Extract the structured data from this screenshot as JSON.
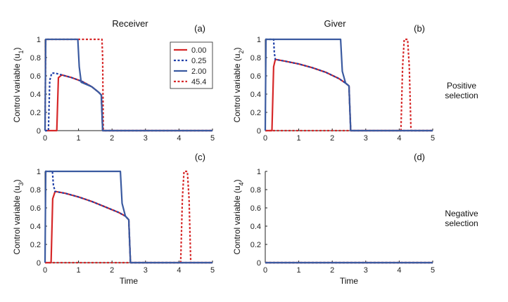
{
  "figure": {
    "column_titles": [
      "Receiver",
      "Giver"
    ],
    "row_labels": [
      [
        "Positive",
        "selection"
      ],
      [
        "Negative",
        "selection"
      ]
    ],
    "x_label": "Time",
    "legend": [
      {
        "label": "0.00",
        "color": "#d62728",
        "style": "solid"
      },
      {
        "label": "0.25",
        "color": "#1f3fa8",
        "style": "dotted"
      },
      {
        "label": "2.00",
        "color": "#3a5aa0",
        "style": "solid"
      },
      {
        "label": "45.4",
        "color": "#d62728",
        "style": "dotted"
      }
    ]
  },
  "chart_data": [
    {
      "panel": "(a)",
      "type": "line",
      "ylabel": "Control variable (u1)",
      "ylabel_main": "Control variable (u",
      "ylabel_sub": "1",
      "ylabel_end": ")",
      "xlim": [
        0,
        5
      ],
      "ylim": [
        0,
        1
      ],
      "xticks": [
        "0",
        "1",
        "2",
        "3",
        "4",
        "5"
      ],
      "yticks": [
        "0",
        "0.2",
        "0.4",
        "0.6",
        "0.8",
        "1"
      ],
      "series": [
        {
          "name": "0.00",
          "color": "#d62728",
          "dash": false,
          "x": [
            0,
            0.35,
            0.4,
            0.5,
            0.8,
            1.1,
            1.4,
            1.6,
            1.68,
            1.72,
            5
          ],
          "y": [
            0,
            0,
            0.58,
            0.61,
            0.58,
            0.54,
            0.48,
            0.42,
            0.39,
            0,
            0
          ]
        },
        {
          "name": "0.25",
          "color": "#1f3fa8",
          "dash": true,
          "x": [
            0,
            0.1,
            0.14,
            0.2,
            0.3,
            0.5,
            0.8,
            1.1,
            1.4,
            1.6,
            1.68,
            1.72,
            5
          ],
          "y": [
            0,
            0,
            0.55,
            0.63,
            0.63,
            0.61,
            0.58,
            0.54,
            0.48,
            0.42,
            0.39,
            0,
            0
          ]
        },
        {
          "name": "2.00",
          "color": "#3a5aa0",
          "dash": false,
          "x": [
            0,
            0.02,
            0.98,
            1.02,
            1.08,
            1.4,
            1.6,
            1.68,
            1.72,
            5
          ],
          "y": [
            0,
            1,
            1,
            0.7,
            0.53,
            0.48,
            0.42,
            0.39,
            0,
            0
          ]
        },
        {
          "name": "45.4",
          "color": "#d62728",
          "dash": true,
          "x": [
            0,
            0.02,
            1.7,
            1.72,
            1.74,
            5
          ],
          "y": [
            0,
            1,
            1,
            0.8,
            0,
            0
          ]
        }
      ]
    },
    {
      "panel": "(b)",
      "type": "line",
      "ylabel": "Control variable (u2)",
      "ylabel_main": "Control variable (u",
      "ylabel_sub": "2",
      "ylabel_end": ")",
      "xlim": [
        0,
        5
      ],
      "ylim": [
        0,
        1
      ],
      "xticks": [
        "0",
        "1",
        "2",
        "3",
        "4",
        "5"
      ],
      "yticks": [
        "0",
        "0.2",
        "0.4",
        "0.6",
        "0.8",
        "1"
      ],
      "series": [
        {
          "name": "0.00",
          "color": "#d62728",
          "dash": false,
          "x": [
            0,
            0.2,
            0.25,
            0.3,
            0.6,
            1.0,
            1.4,
            1.8,
            2.2,
            2.4,
            2.5,
            2.55,
            5
          ],
          "y": [
            0,
            0,
            0.7,
            0.78,
            0.76,
            0.73,
            0.69,
            0.64,
            0.57,
            0.52,
            0.49,
            0,
            0
          ]
        },
        {
          "name": "0.25",
          "color": "#1f3fa8",
          "dash": true,
          "x": [
            0,
            0.25,
            0.27,
            0.3,
            0.6,
            1.0,
            1.4,
            1.8,
            2.2,
            2.4,
            2.5,
            2.55,
            5
          ],
          "y": [
            1,
            1,
            0.85,
            0.78,
            0.76,
            0.73,
            0.69,
            0.64,
            0.57,
            0.52,
            0.49,
            0,
            0
          ]
        },
        {
          "name": "2.00",
          "color": "#3a5aa0",
          "dash": false,
          "x": [
            0,
            0.02,
            2.25,
            2.3,
            2.4,
            2.5,
            2.55,
            5
          ],
          "y": [
            0,
            1,
            1,
            0.65,
            0.52,
            0.49,
            0,
            0
          ]
        },
        {
          "name": "45.4",
          "color": "#d62728",
          "dash": true,
          "x": [
            0,
            4.05,
            4.1,
            4.15,
            4.2,
            4.25,
            4.3,
            4.35,
            5
          ],
          "y": [
            0,
            0,
            0.7,
            1,
            1,
            1,
            0.7,
            0,
            0
          ]
        }
      ]
    },
    {
      "panel": "(c)",
      "type": "line",
      "ylabel": "Control variable (u3)",
      "ylabel_main": "Control variable (u",
      "ylabel_sub": "3",
      "ylabel_end": ")",
      "xlim": [
        0,
        5
      ],
      "ylim": [
        0,
        1
      ],
      "xticks": [
        "0",
        "1",
        "2",
        "3",
        "4",
        "5"
      ],
      "yticks": [
        "0",
        "0.2",
        "0.4",
        "0.6",
        "0.8",
        "1"
      ],
      "series": [
        {
          "name": "0.00",
          "color": "#d62728",
          "dash": false,
          "x": [
            0,
            0.18,
            0.23,
            0.3,
            0.6,
            1.0,
            1.4,
            1.8,
            2.2,
            2.4,
            2.5,
            2.55,
            5
          ],
          "y": [
            0,
            0,
            0.7,
            0.78,
            0.76,
            0.72,
            0.67,
            0.61,
            0.55,
            0.51,
            0.47,
            0,
            0
          ]
        },
        {
          "name": "0.25",
          "color": "#1f3fa8",
          "dash": true,
          "x": [
            0,
            0.22,
            0.25,
            0.3,
            0.6,
            1.0,
            1.4,
            1.8,
            2.2,
            2.4,
            2.5,
            2.55,
            5
          ],
          "y": [
            1,
            1,
            0.85,
            0.78,
            0.76,
            0.72,
            0.67,
            0.61,
            0.55,
            0.51,
            0.47,
            0,
            0
          ]
        },
        {
          "name": "2.00",
          "color": "#3a5aa0",
          "dash": false,
          "x": [
            0,
            0.02,
            2.25,
            2.3,
            2.4,
            2.5,
            2.55,
            5
          ],
          "y": [
            0,
            1,
            1,
            0.65,
            0.51,
            0.47,
            0,
            0
          ]
        },
        {
          "name": "45.4",
          "color": "#d62728",
          "dash": true,
          "x": [
            0,
            4.05,
            4.1,
            4.15,
            4.2,
            4.25,
            4.3,
            4.35,
            5
          ],
          "y": [
            0,
            0,
            0.7,
            1,
            1,
            1,
            0.7,
            0,
            0
          ]
        }
      ]
    },
    {
      "panel": "(d)",
      "type": "line",
      "ylabel": "Control variable (u4)",
      "ylabel_main": "Control variable (u",
      "ylabel_sub": "4",
      "ylabel_end": ")",
      "xlim": [
        0,
        5
      ],
      "ylim": [
        0,
        1
      ],
      "xticks": [
        "0",
        "1",
        "2",
        "3",
        "4",
        "5"
      ],
      "yticks": [
        "0",
        "0.2",
        "0.4",
        "0.6",
        "0.8",
        "1"
      ],
      "series": [
        {
          "name": "0.00",
          "color": "#d62728",
          "dash": false,
          "x": [
            0,
            5
          ],
          "y": [
            0,
            0
          ]
        },
        {
          "name": "0.25",
          "color": "#1f3fa8",
          "dash": true,
          "x": [
            0,
            5
          ],
          "y": [
            0,
            0
          ]
        },
        {
          "name": "2.00",
          "color": "#3a5aa0",
          "dash": false,
          "x": [
            0,
            5
          ],
          "y": [
            0,
            0
          ]
        },
        {
          "name": "45.4",
          "color": "#d62728",
          "dash": true,
          "x": [
            0,
            5
          ],
          "y": [
            0,
            0
          ]
        }
      ]
    }
  ]
}
